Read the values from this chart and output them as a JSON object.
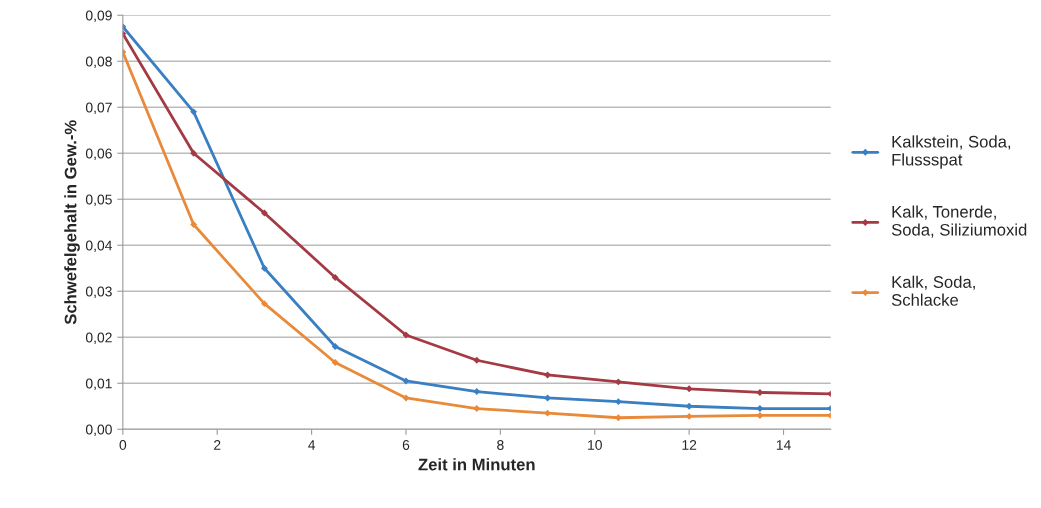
{
  "chart_data": {
    "type": "line",
    "xlabel": "Zeit in Minuten",
    "ylabel": "Schwefelgehalt in Gew.-%",
    "x": [
      0,
      1.5,
      3,
      4.5,
      6,
      7.5,
      9,
      10.5,
      12,
      13.5,
      15
    ],
    "series": [
      {
        "name": "Kalkstein, Soda,\nFlussspat",
        "color": "#3a7fc1",
        "values": [
          0.0875,
          0.069,
          0.035,
          0.018,
          0.0105,
          0.0082,
          0.0068,
          0.006,
          0.005,
          0.0045,
          0.0045
        ]
      },
      {
        "name": "Kalk, Tonerde,\nSoda, Siliziumoxid",
        "color": "#a33a44",
        "values": [
          0.086,
          0.06,
          0.047,
          0.033,
          0.0205,
          0.015,
          0.0118,
          0.0103,
          0.0088,
          0.008,
          0.0077
        ]
      },
      {
        "name": "Kalk, Soda,\nSchlacke",
        "color": "#e88a3a",
        "values": [
          0.082,
          0.0445,
          0.0273,
          0.0145,
          0.0068,
          0.0045,
          0.0035,
          0.0025,
          0.0028,
          0.003,
          0.003
        ]
      }
    ],
    "xlim": [
      0,
      15
    ],
    "xticks": [
      0,
      2,
      4,
      6,
      8,
      10,
      12,
      14
    ],
    "ylim": [
      0,
      0.09
    ],
    "yticks": [
      {
        "value": 0,
        "label": "0,00"
      },
      {
        "value": 0.01,
        "label": "0,01"
      },
      {
        "value": 0.02,
        "label": "0,02"
      },
      {
        "value": 0.03,
        "label": "0,03"
      },
      {
        "value": 0.04,
        "label": "0,04"
      },
      {
        "value": 0.05,
        "label": "0,05"
      },
      {
        "value": 0.06,
        "label": "0,06"
      },
      {
        "value": 0.07,
        "label": "0,07"
      },
      {
        "value": 0.08,
        "label": "0,08"
      },
      {
        "value": 0.09,
        "label": "0,09"
      }
    ],
    "grid": "y",
    "legend": "right",
    "marker": "diamond",
    "line_style": "solid"
  }
}
